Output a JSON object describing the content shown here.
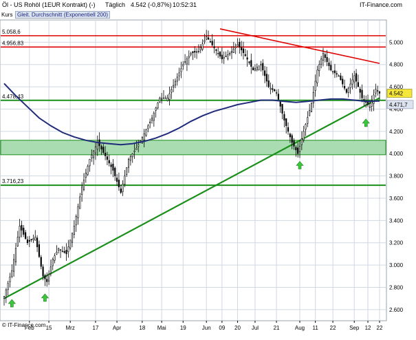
{
  "header": {
    "instrument": "Öl - US Rohöl (1EUR Kontrakt) (-)",
    "interval": "Täglich",
    "last_change": "4.542 (-0,87%)",
    "time": "10:52:31",
    "brand": "IT-Finance.com"
  },
  "legend": {
    "kurs": "Kurs",
    "ema": "Gleit. Durchschnitt (Exponentiell 200)"
  },
  "footer": {
    "copyright": "© IT-Finance.com"
  },
  "colors": {
    "candle": "#000000",
    "ema": "#1f2a7a",
    "support": "#1a8f1a",
    "resistance": "#e00000",
    "zone": "#a9dcb0",
    "last_price_box": "#f5e63a",
    "ema_box": "#dde3ef",
    "arrow": "#3cc83c",
    "grid": "#d0d7e2"
  },
  "chart_data": {
    "type": "candlestick",
    "x_unit": "trading day index",
    "x_range": [
      0,
      193
    ],
    "ylim": [
      2.5,
      5.2
    ],
    "y_ticks": [
      2.6,
      2.8,
      3.0,
      3.2,
      3.4,
      3.6,
      3.8,
      4.0,
      4.2,
      4.4,
      4.6,
      4.8,
      5.0
    ],
    "y_tick_labels": [
      "2.600",
      "2.800",
      "3.000",
      "3.200",
      "3.400",
      "3.600",
      "3.800",
      "4.000",
      "4.200",
      "4.400",
      "4.600",
      "4.800",
      "5.000"
    ],
    "x_ticks": [
      {
        "label": "Feb",
        "x": 13
      },
      {
        "label": "15",
        "x": 23
      },
      {
        "label": "Mrz",
        "x": 34
      },
      {
        "label": "17",
        "x": 47
      },
      {
        "label": "Apr",
        "x": 58
      },
      {
        "label": "18",
        "x": 71
      },
      {
        "label": "Mai",
        "x": 81
      },
      {
        "label": "19",
        "x": 92
      },
      {
        "label": "Jun",
        "x": 104
      },
      {
        "label": "09",
        "x": 112
      },
      {
        "label": "20",
        "x": 120
      },
      {
        "label": "Jul",
        "x": 129
      },
      {
        "label": "21",
        "x": 140
      },
      {
        "label": "Aug",
        "x": 152
      },
      {
        "label": "11",
        "x": 160
      },
      {
        "label": "22",
        "x": 169
      },
      {
        "label": "Sep",
        "x": 180
      },
      {
        "label": "12",
        "x": 187
      },
      {
        "label": "22",
        "x": 193
      }
    ],
    "price_anchors": [
      [
        0,
        2.72
      ],
      [
        4,
        2.95
      ],
      [
        8,
        3.35
      ],
      [
        12,
        3.2
      ],
      [
        16,
        3.25
      ],
      [
        20,
        2.9
      ],
      [
        22,
        2.85
      ],
      [
        25,
        3.05
      ],
      [
        28,
        3.15
      ],
      [
        32,
        3.1
      ],
      [
        36,
        3.35
      ],
      [
        40,
        3.7
      ],
      [
        44,
        3.95
      ],
      [
        48,
        4.1
      ],
      [
        52,
        3.98
      ],
      [
        56,
        3.85
      ],
      [
        60,
        3.65
      ],
      [
        64,
        3.95
      ],
      [
        68,
        4.05
      ],
      [
        72,
        4.18
      ],
      [
        76,
        4.32
      ],
      [
        80,
        4.5
      ],
      [
        84,
        4.5
      ],
      [
        88,
        4.65
      ],
      [
        92,
        4.8
      ],
      [
        96,
        4.9
      ],
      [
        100,
        4.92
      ],
      [
        104,
        5.05
      ],
      [
        108,
        4.95
      ],
      [
        112,
        4.85
      ],
      [
        116,
        4.9
      ],
      [
        120,
        4.98
      ],
      [
        124,
        4.88
      ],
      [
        128,
        4.75
      ],
      [
        132,
        4.8
      ],
      [
        136,
        4.6
      ],
      [
        140,
        4.55
      ],
      [
        144,
        4.3
      ],
      [
        148,
        4.1
      ],
      [
        151,
        4.0
      ],
      [
        154,
        4.2
      ],
      [
        158,
        4.45
      ],
      [
        161,
        4.75
      ],
      [
        164,
        4.9
      ],
      [
        168,
        4.75
      ],
      [
        172,
        4.7
      ],
      [
        176,
        4.55
      ],
      [
        180,
        4.7
      ],
      [
        184,
        4.5
      ],
      [
        188,
        4.42
      ],
      [
        191,
        4.58
      ],
      [
        193,
        4.542
      ]
    ],
    "ema200": [
      [
        0,
        4.63
      ],
      [
        6,
        4.52
      ],
      [
        12,
        4.42
      ],
      [
        18,
        4.32
      ],
      [
        24,
        4.25
      ],
      [
        30,
        4.19
      ],
      [
        36,
        4.15
      ],
      [
        42,
        4.12
      ],
      [
        48,
        4.1
      ],
      [
        54,
        4.09
      ],
      [
        60,
        4.08
      ],
      [
        66,
        4.09
      ],
      [
        72,
        4.11
      ],
      [
        78,
        4.14
      ],
      [
        84,
        4.18
      ],
      [
        90,
        4.23
      ],
      [
        96,
        4.29
      ],
      [
        102,
        4.34
      ],
      [
        108,
        4.38
      ],
      [
        114,
        4.41
      ],
      [
        120,
        4.44
      ],
      [
        126,
        4.46
      ],
      [
        132,
        4.48
      ],
      [
        138,
        4.48
      ],
      [
        144,
        4.47
      ],
      [
        150,
        4.46
      ],
      [
        156,
        4.47
      ],
      [
        162,
        4.48
      ],
      [
        168,
        4.49
      ],
      [
        174,
        4.49
      ],
      [
        180,
        4.48
      ],
      [
        186,
        4.47
      ],
      [
        193,
        4.472
      ]
    ],
    "last_price": {
      "label": "4.542",
      "value": 4.542
    },
    "ema_last": {
      "label": "4.471,7",
      "value": 4.4717
    },
    "horizontal_levels": [
      {
        "label": "5.058,6",
        "value": 5.0586,
        "color": "#e00000"
      },
      {
        "label": "4.956,83",
        "value": 4.9568,
        "color": "#e00000"
      },
      {
        "label": "4.478,43",
        "value": 4.4784,
        "color": "#1a8f1a"
      },
      {
        "label": "3.716,23",
        "value": 3.7162,
        "color": "#1a8f1a"
      }
    ],
    "zone": {
      "from": 3.99,
      "to": 4.12
    },
    "trendlines": [
      {
        "type": "resistance",
        "from": [
          111,
          5.12
        ],
        "to": [
          193,
          4.81
        ]
      },
      {
        "type": "support",
        "from": [
          0,
          2.7
        ],
        "to": [
          193,
          4.5
        ]
      }
    ],
    "arrows": [
      {
        "x": 4,
        "value": 2.66
      },
      {
        "x": 21,
        "value": 2.71
      },
      {
        "x": 152,
        "value": 3.9
      },
      {
        "x": 186,
        "value": 4.28
      }
    ]
  }
}
